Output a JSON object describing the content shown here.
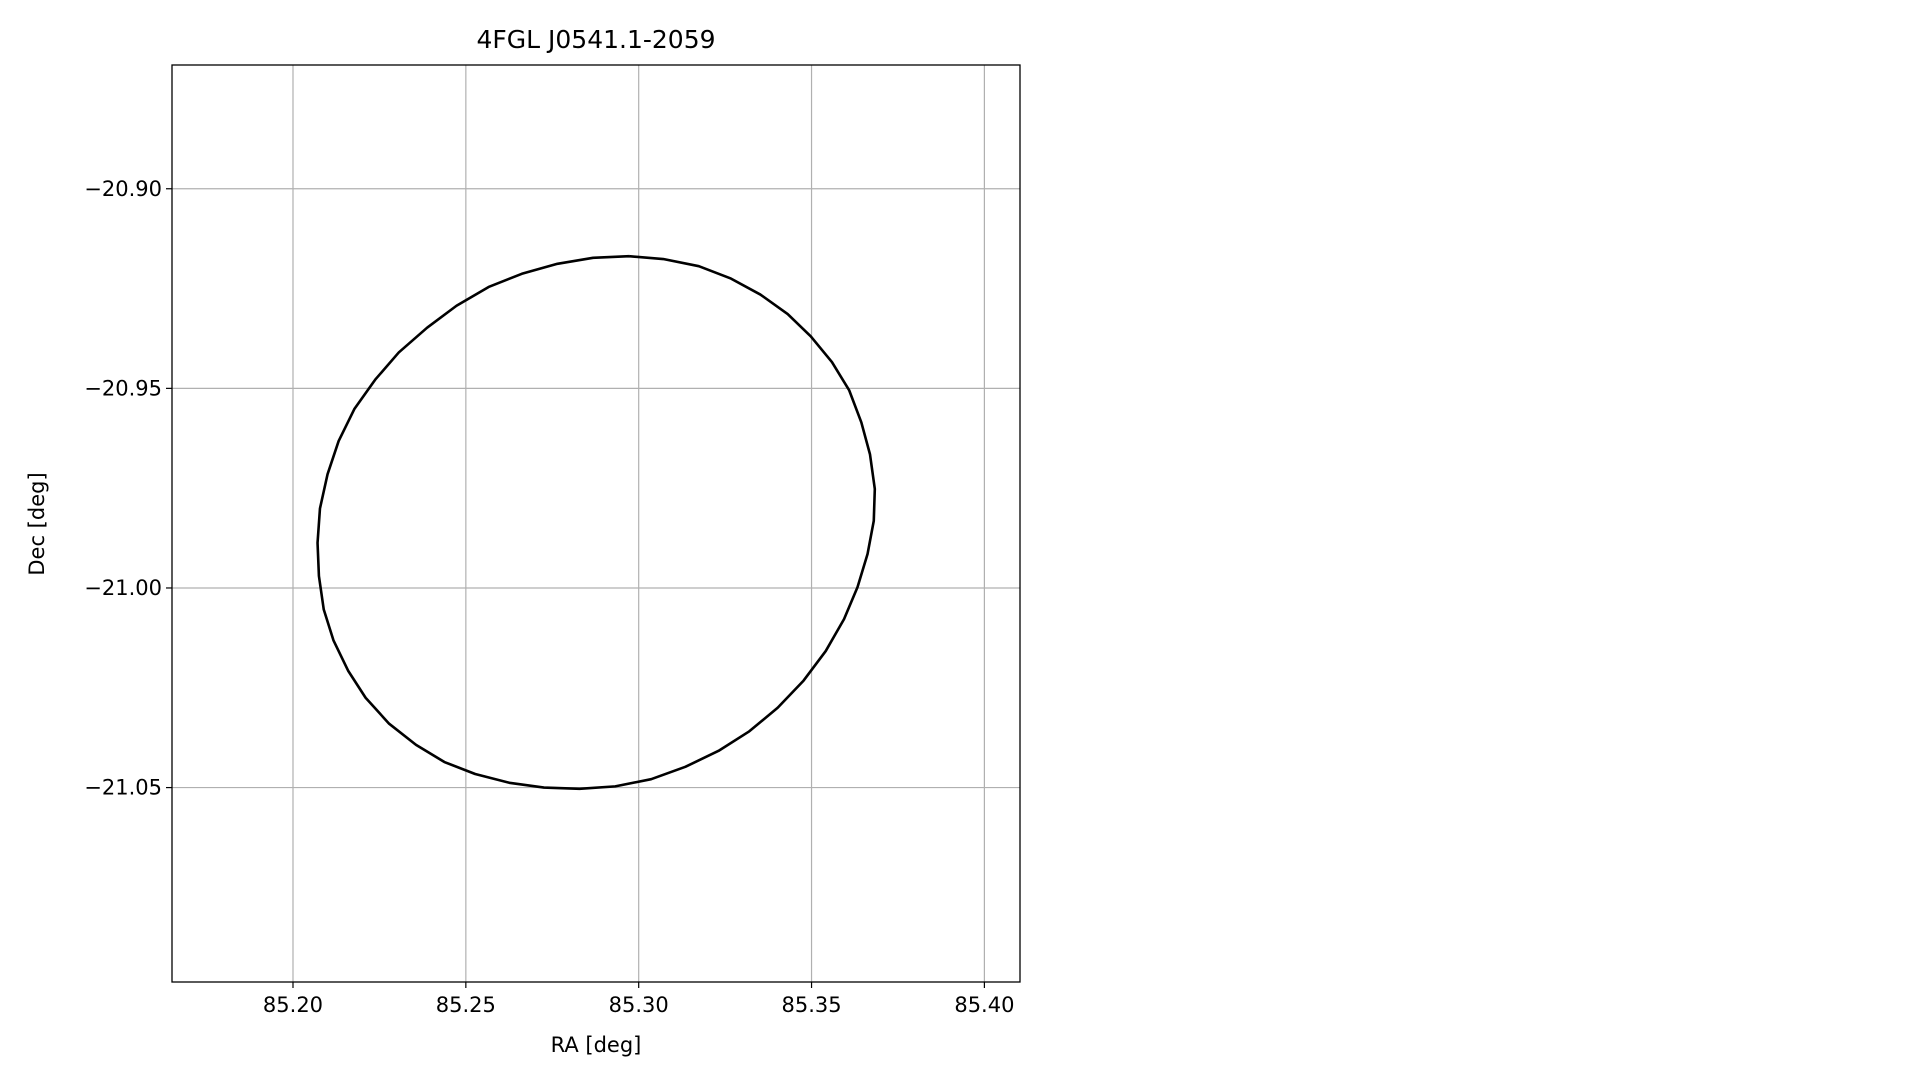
{
  "chart_data": {
    "type": "line",
    "title": "4FGL J0541.1-2059",
    "x_label": "RA [deg]",
    "y_label": "Dec [deg]",
    "grid": true,
    "xlim": [
      85.165,
      85.4103
    ],
    "ylim": [
      -21.0987,
      -20.869
    ],
    "xticks": [
      {
        "value": 85.2,
        "label": "85.20"
      },
      {
        "value": 85.25,
        "label": "85.25"
      },
      {
        "value": 85.3,
        "label": "85.30"
      },
      {
        "value": 85.35,
        "label": "85.35"
      },
      {
        "value": 85.4,
        "label": "85.40"
      }
    ],
    "yticks": [
      {
        "value": -20.9,
        "label": "−20.90"
      },
      {
        "value": -20.95,
        "label": "−20.95"
      },
      {
        "value": -21.0,
        "label": "−21.00"
      },
      {
        "value": -21.05,
        "label": "−21.05"
      }
    ],
    "series": [
      {
        "color": "#000000",
        "x": [
          85.2972,
          85.3071,
          85.3174,
          85.3267,
          85.3352,
          85.3431,
          85.3498,
          85.3559,
          85.3609,
          85.3644,
          85.3669,
          85.3683,
          85.368,
          85.3662,
          85.3633,
          85.3594,
          85.3541,
          85.3477,
          85.3402,
          85.332,
          85.3231,
          85.3135,
          85.3036,
          85.2932,
          85.2829,
          85.2726,
          85.2626,
          85.2527,
          85.2438,
          85.2356,
          85.2278,
          85.221,
          85.216,
          85.2117,
          85.2089,
          85.2075,
          85.2071,
          85.2078,
          85.21,
          85.2132,
          85.2178,
          85.2238,
          85.2306,
          85.2388,
          85.2473,
          85.2566,
          85.2662,
          85.2765,
          85.2868,
          85.2972
        ],
        "values": [
          -20.9169,
          -20.9176,
          -20.9194,
          -20.9225,
          -20.9265,
          -20.9314,
          -20.937,
          -20.9434,
          -20.9505,
          -20.9585,
          -20.9665,
          -20.9752,
          -20.9832,
          -20.9915,
          -20.9998,
          -21.0078,
          -21.0158,
          -21.0232,
          -21.03,
          -21.0359,
          -21.0408,
          -21.0448,
          -21.0479,
          -21.0497,
          -21.0503,
          -21.05,
          -21.0488,
          -21.0466,
          -21.0436,
          -21.0393,
          -21.034,
          -21.0275,
          -21.0208,
          -21.0131,
          -21.0054,
          -20.997,
          -20.9887,
          -20.9801,
          -20.9715,
          -20.9632,
          -20.9551,
          -20.9478,
          -20.941,
          -20.9348,
          -20.9293,
          -20.9246,
          -20.9213,
          -20.9188,
          -20.9173,
          -20.9169
        ]
      }
    ]
  }
}
